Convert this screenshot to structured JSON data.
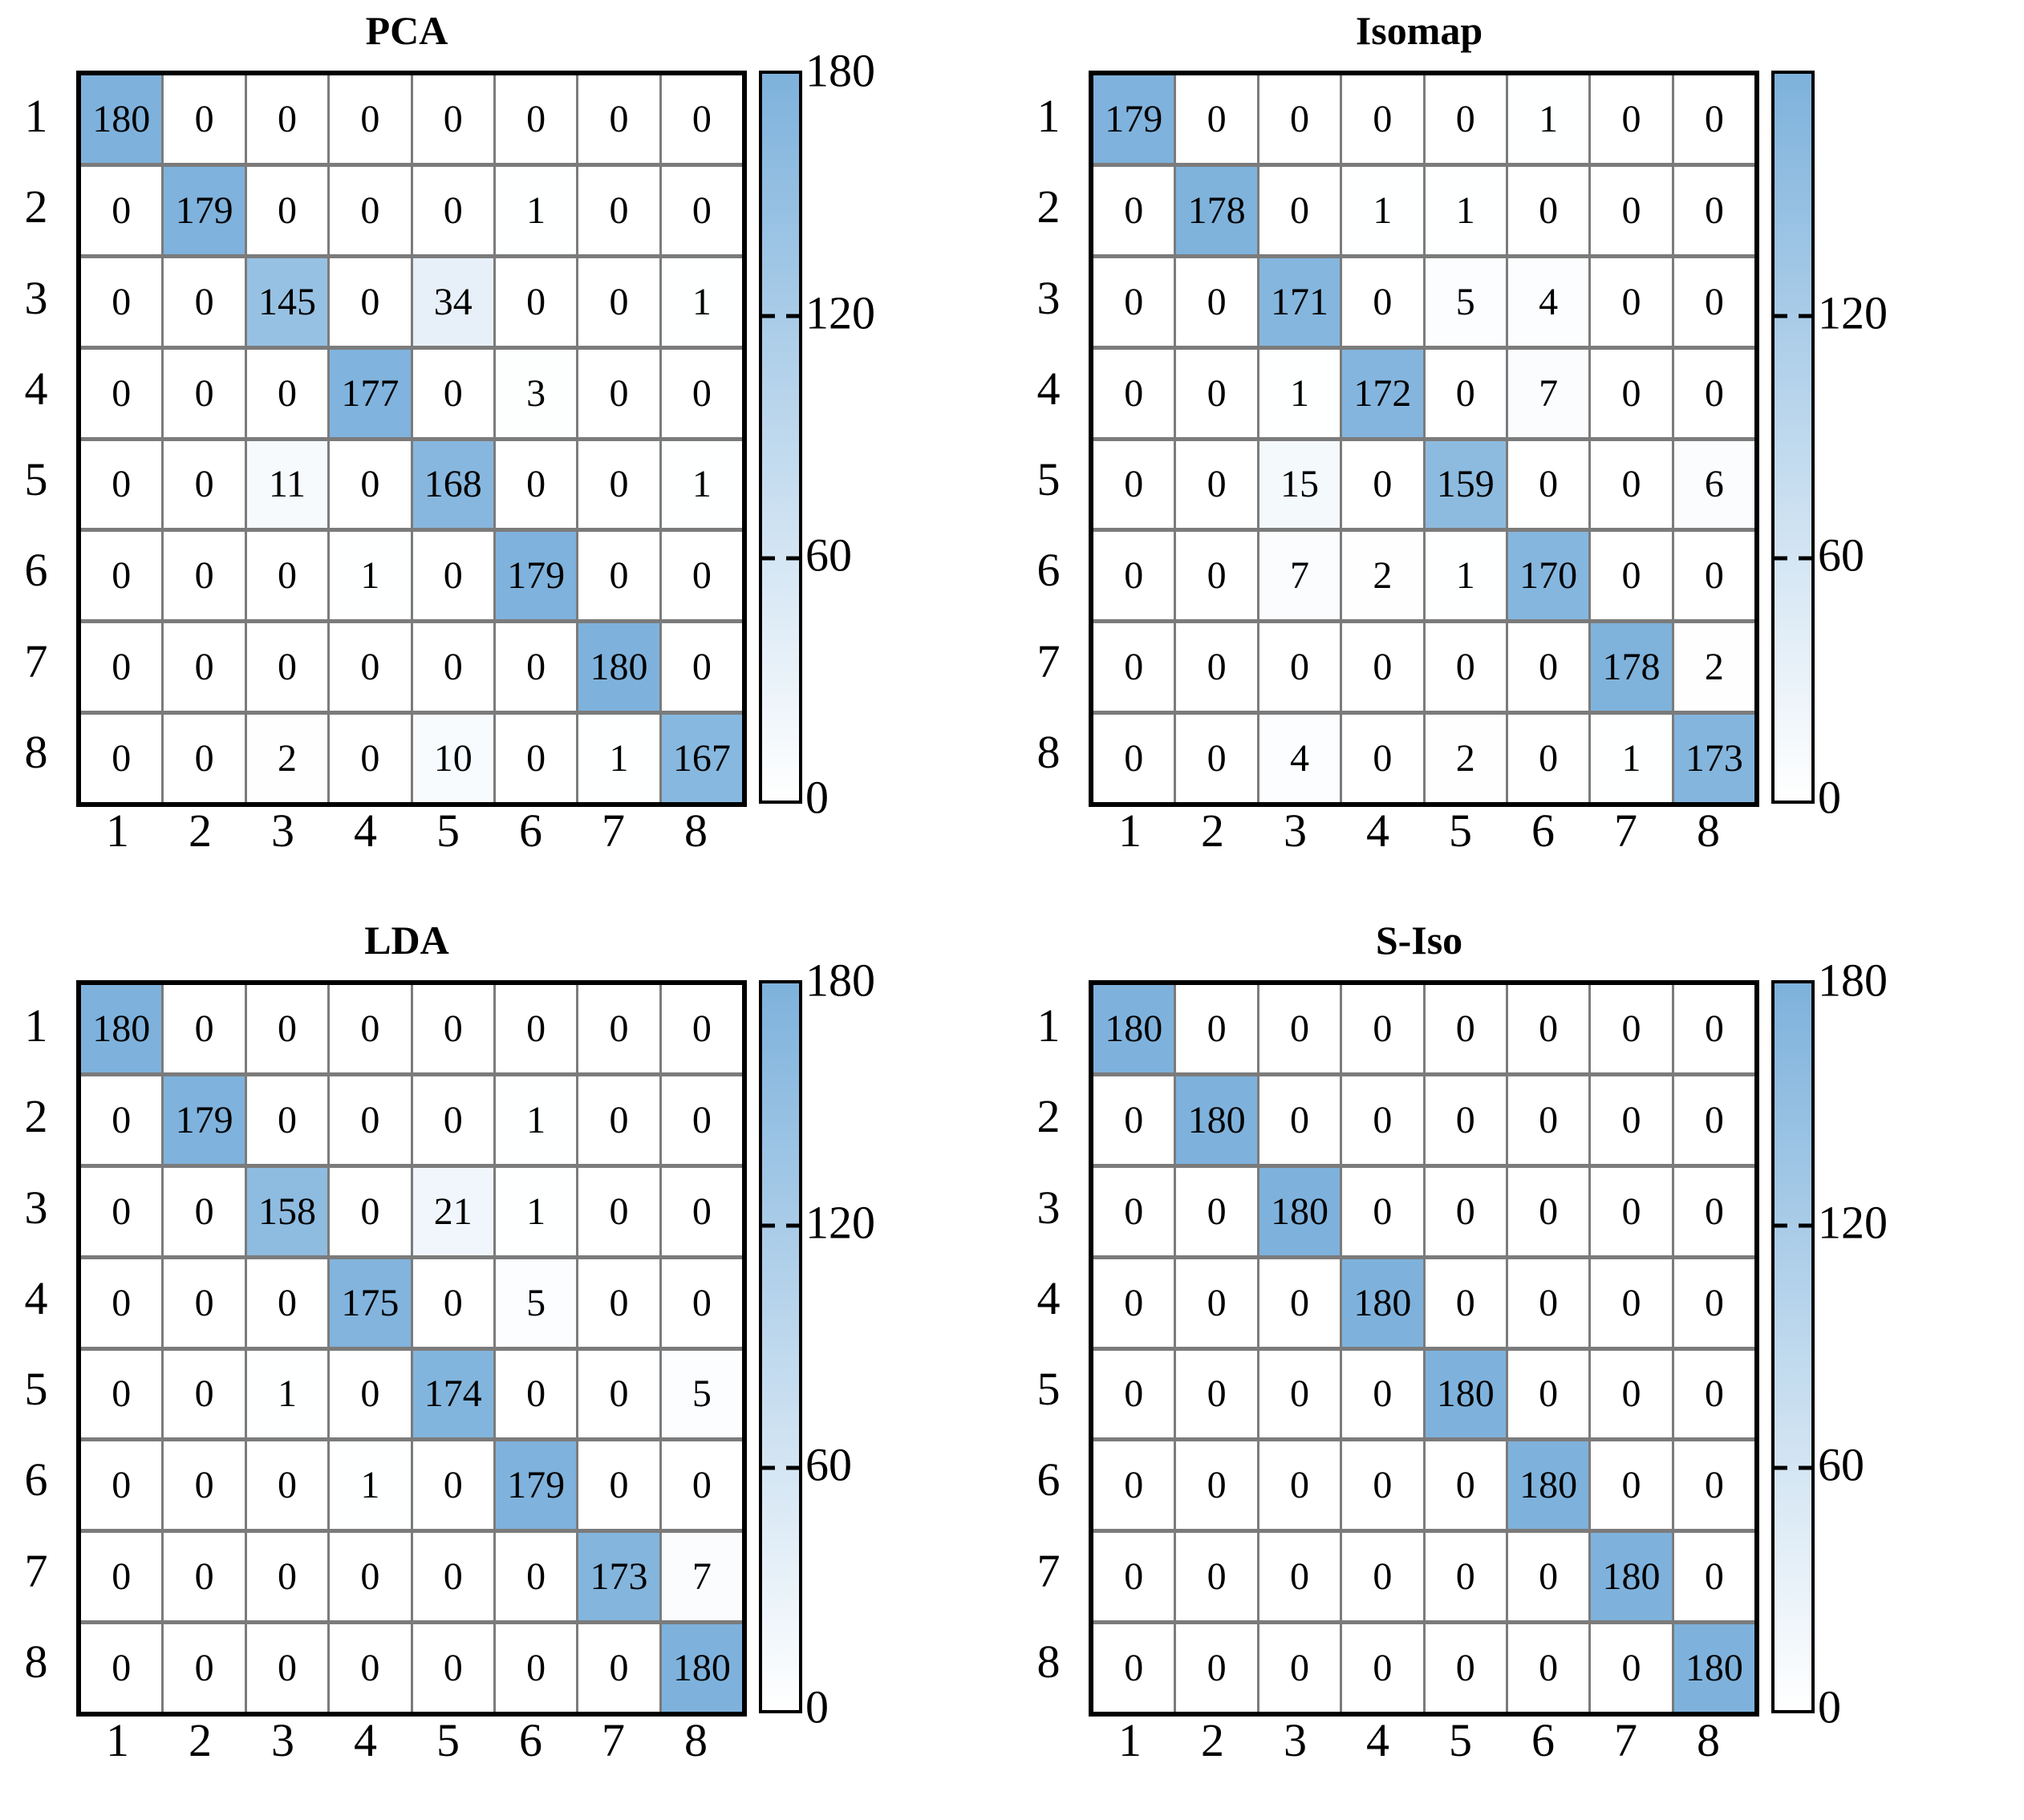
{
  "figure": {
    "background": "#ffffff",
    "accent_blue": "#7eb2dc",
    "grid_line_color": "#7b7b7b",
    "border_color": "#000000"
  },
  "axis": {
    "x_ticks": [
      "1",
      "2",
      "3",
      "4",
      "5",
      "6",
      "7",
      "8"
    ],
    "y_ticks": [
      "1",
      "2",
      "3",
      "4",
      "5",
      "6",
      "7",
      "8"
    ]
  },
  "chart_data": [
    {
      "type": "heatmap",
      "title": "PCA",
      "x_ticks": [
        "1",
        "2",
        "3",
        "4",
        "5",
        "6",
        "7",
        "8"
      ],
      "y_ticks": [
        "1",
        "2",
        "3",
        "4",
        "5",
        "6",
        "7",
        "8"
      ],
      "vmin": 0,
      "vmax": 180,
      "colorbar_ticks": [
        {
          "label": "180",
          "value": 180
        },
        {
          "label": "120",
          "value": 120
        },
        {
          "label": "60",
          "value": 60
        },
        {
          "label": "0",
          "value": 0
        }
      ],
      "values": [
        [
          180,
          0,
          0,
          0,
          0,
          0,
          0,
          0
        ],
        [
          0,
          179,
          0,
          0,
          0,
          1,
          0,
          0
        ],
        [
          0,
          0,
          145,
          0,
          34,
          0,
          0,
          1
        ],
        [
          0,
          0,
          0,
          177,
          0,
          3,
          0,
          0
        ],
        [
          0,
          0,
          11,
          0,
          168,
          0,
          0,
          1
        ],
        [
          0,
          0,
          0,
          1,
          0,
          179,
          0,
          0
        ],
        [
          0,
          0,
          0,
          0,
          0,
          0,
          180,
          0
        ],
        [
          0,
          0,
          2,
          0,
          10,
          0,
          1,
          167
        ]
      ]
    },
    {
      "type": "heatmap",
      "title": "Isomap",
      "x_ticks": [
        "1",
        "2",
        "3",
        "4",
        "5",
        "6",
        "7",
        "8"
      ],
      "y_ticks": [
        "1",
        "2",
        "3",
        "4",
        "5",
        "6",
        "7",
        "8"
      ],
      "vmin": 0,
      "vmax": 180,
      "colorbar_ticks": [
        {
          "label": "120",
          "value": 120
        },
        {
          "label": "60",
          "value": 60
        },
        {
          "label": "0",
          "value": 0
        }
      ],
      "values": [
        [
          179,
          0,
          0,
          0,
          0,
          1,
          0,
          0
        ],
        [
          0,
          178,
          0,
          1,
          1,
          0,
          0,
          0
        ],
        [
          0,
          0,
          171,
          0,
          5,
          4,
          0,
          0
        ],
        [
          0,
          0,
          1,
          172,
          0,
          7,
          0,
          0
        ],
        [
          0,
          0,
          15,
          0,
          159,
          0,
          0,
          6
        ],
        [
          0,
          0,
          7,
          2,
          1,
          170,
          0,
          0
        ],
        [
          0,
          0,
          0,
          0,
          0,
          0,
          178,
          2
        ],
        [
          0,
          0,
          4,
          0,
          2,
          0,
          1,
          173
        ]
      ]
    },
    {
      "type": "heatmap",
      "title": "LDA",
      "x_ticks": [
        "1",
        "2",
        "3",
        "4",
        "5",
        "6",
        "7",
        "8"
      ],
      "y_ticks": [
        "1",
        "2",
        "3",
        "4",
        "5",
        "6",
        "7",
        "8"
      ],
      "vmin": 0,
      "vmax": 180,
      "colorbar_ticks": [
        {
          "label": "180",
          "value": 180
        },
        {
          "label": "120",
          "value": 120
        },
        {
          "label": "60",
          "value": 60
        },
        {
          "label": "0",
          "value": 0
        }
      ],
      "values": [
        [
          180,
          0,
          0,
          0,
          0,
          0,
          0,
          0
        ],
        [
          0,
          179,
          0,
          0,
          0,
          1,
          0,
          0
        ],
        [
          0,
          0,
          158,
          0,
          21,
          1,
          0,
          0
        ],
        [
          0,
          0,
          0,
          175,
          0,
          5,
          0,
          0
        ],
        [
          0,
          0,
          1,
          0,
          174,
          0,
          0,
          5
        ],
        [
          0,
          0,
          0,
          1,
          0,
          179,
          0,
          0
        ],
        [
          0,
          0,
          0,
          0,
          0,
          0,
          173,
          7
        ],
        [
          0,
          0,
          0,
          0,
          0,
          0,
          0,
          180
        ]
      ]
    },
    {
      "type": "heatmap",
      "title": "S-Iso",
      "x_ticks": [
        "1",
        "2",
        "3",
        "4",
        "5",
        "6",
        "7",
        "8"
      ],
      "y_ticks": [
        "1",
        "2",
        "3",
        "4",
        "5",
        "6",
        "7",
        "8"
      ],
      "vmin": 0,
      "vmax": 180,
      "colorbar_ticks": [
        {
          "label": "180",
          "value": 180
        },
        {
          "label": "120",
          "value": 120
        },
        {
          "label": "60",
          "value": 60
        },
        {
          "label": "0",
          "value": 0
        }
      ],
      "values": [
        [
          180,
          0,
          0,
          0,
          0,
          0,
          0,
          0
        ],
        [
          0,
          180,
          0,
          0,
          0,
          0,
          0,
          0
        ],
        [
          0,
          0,
          180,
          0,
          0,
          0,
          0,
          0
        ],
        [
          0,
          0,
          0,
          180,
          0,
          0,
          0,
          0
        ],
        [
          0,
          0,
          0,
          0,
          180,
          0,
          0,
          0
        ],
        [
          0,
          0,
          0,
          0,
          0,
          180,
          0,
          0
        ],
        [
          0,
          0,
          0,
          0,
          0,
          0,
          180,
          0
        ],
        [
          0,
          0,
          0,
          0,
          0,
          0,
          0,
          180
        ]
      ]
    }
  ]
}
